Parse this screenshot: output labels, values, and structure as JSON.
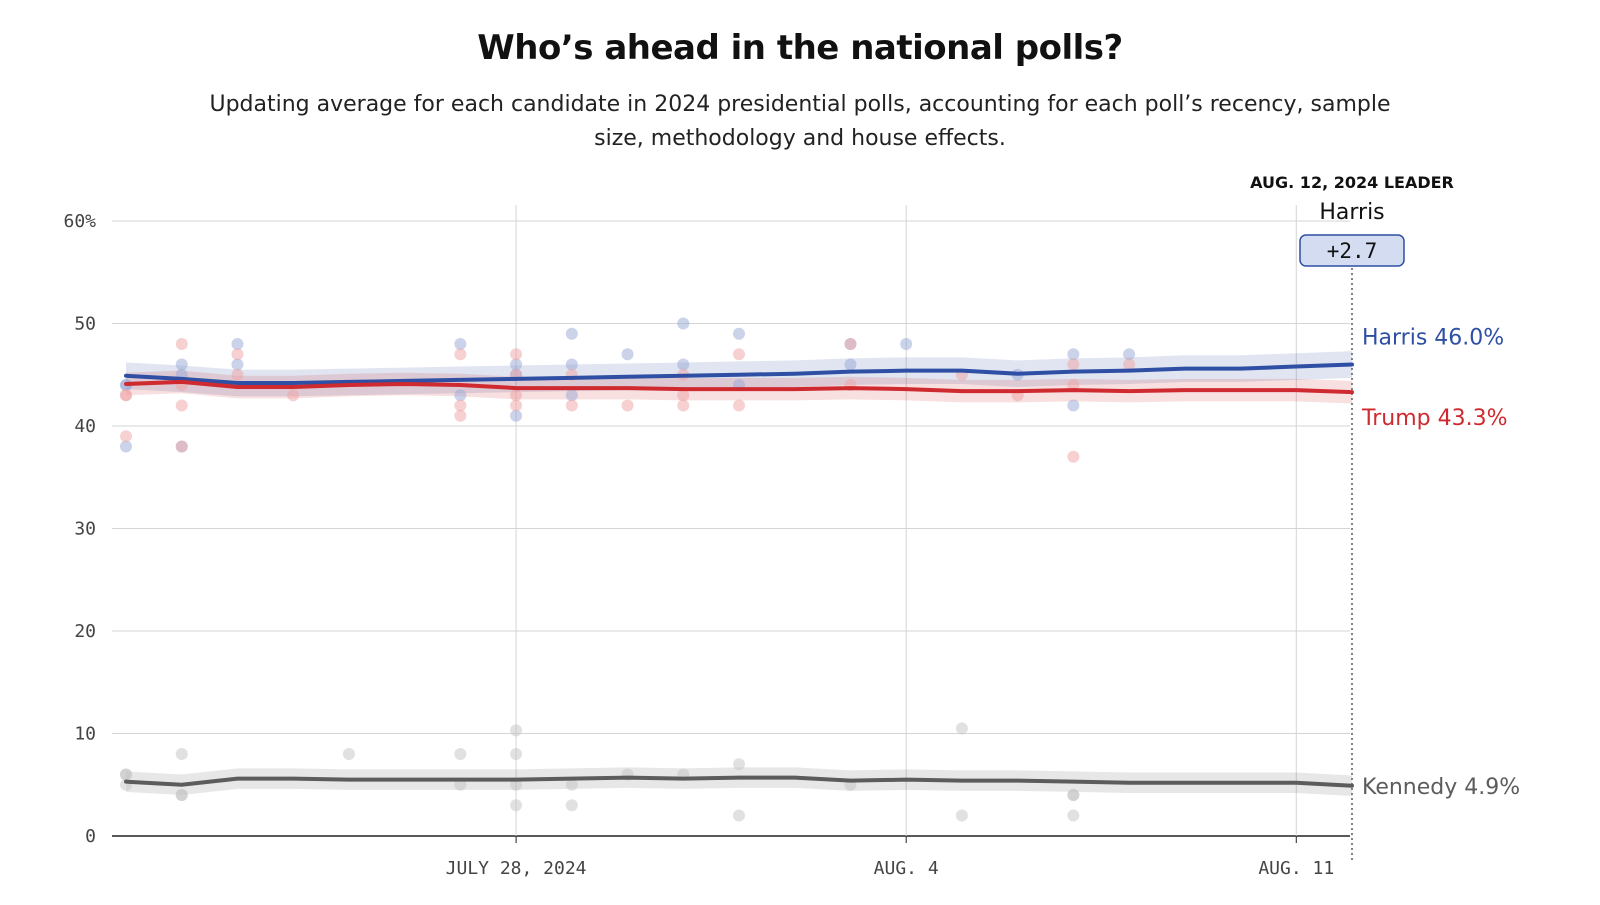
{
  "title": "Who’s ahead in the national polls?",
  "subtitle": "Updating average for each candidate in 2024 presidential polls, accounting for each poll’s recency, sample size, methodology and house effects.",
  "chart_data": {
    "type": "line",
    "y_unit": "%",
    "ylim": [
      0,
      60
    ],
    "y_ticks": [
      0,
      10,
      20,
      30,
      40,
      50,
      60
    ],
    "y_tick_labels": [
      "0",
      "10",
      "20",
      "30",
      "40",
      "50",
      "60%"
    ],
    "x_range": [
      "2024-07-21",
      "2024-08-12"
    ],
    "x_ticks": [
      {
        "date": "2024-07-28",
        "label": "JULY 28, 2024"
      },
      {
        "date": "2024-08-04",
        "label": "AUG. 4"
      },
      {
        "date": "2024-08-11",
        "label": "AUG. 11"
      }
    ],
    "grid": true,
    "leader": {
      "date_label": "AUG. 12, 2024 LEADER",
      "name": "Harris",
      "margin": "+2.7"
    },
    "series": [
      {
        "name": "Harris",
        "end_label": "Harris 46.0%",
        "color": "#2e4fa3",
        "dot_color": "#97a7d6",
        "x": [
          "2024-07-21",
          "2024-07-22",
          "2024-07-23",
          "2024-07-24",
          "2024-07-25",
          "2024-07-26",
          "2024-07-27",
          "2024-07-28",
          "2024-07-29",
          "2024-07-30",
          "2024-07-31",
          "2024-08-01",
          "2024-08-02",
          "2024-08-03",
          "2024-08-04",
          "2024-08-05",
          "2024-08-06",
          "2024-08-07",
          "2024-08-08",
          "2024-08-09",
          "2024-08-10",
          "2024-08-11",
          "2024-08-12"
        ],
        "values": [
          44.9,
          44.6,
          44.2,
          44.2,
          44.3,
          44.4,
          44.5,
          44.6,
          44.7,
          44.8,
          44.9,
          45.0,
          45.1,
          45.3,
          45.4,
          45.4,
          45.1,
          45.3,
          45.4,
          45.6,
          45.6,
          45.8,
          46.0
        ],
        "band": 1.3,
        "polls": [
          {
            "date": "2024-07-21",
            "value": 44
          },
          {
            "date": "2024-07-21",
            "value": 38
          },
          {
            "date": "2024-07-21",
            "value": 44
          },
          {
            "date": "2024-07-22",
            "value": 46
          },
          {
            "date": "2024-07-22",
            "value": 45
          },
          {
            "date": "2024-07-22",
            "value": 38
          },
          {
            "date": "2024-07-23",
            "value": 48
          },
          {
            "date": "2024-07-23",
            "value": 46
          },
          {
            "date": "2024-07-27",
            "value": 48
          },
          {
            "date": "2024-07-27",
            "value": 43
          },
          {
            "date": "2024-07-28",
            "value": 46
          },
          {
            "date": "2024-07-28",
            "value": 45
          },
          {
            "date": "2024-07-28",
            "value": 41
          },
          {
            "date": "2024-07-29",
            "value": 49
          },
          {
            "date": "2024-07-29",
            "value": 46
          },
          {
            "date": "2024-07-29",
            "value": 43
          },
          {
            "date": "2024-07-30",
            "value": 47
          },
          {
            "date": "2024-07-31",
            "value": 50
          },
          {
            "date": "2024-07-31",
            "value": 46
          },
          {
            "date": "2024-08-01",
            "value": 49
          },
          {
            "date": "2024-08-01",
            "value": 44
          },
          {
            "date": "2024-08-03",
            "value": 48
          },
          {
            "date": "2024-08-03",
            "value": 46
          },
          {
            "date": "2024-08-04",
            "value": 48
          },
          {
            "date": "2024-08-06",
            "value": 45
          },
          {
            "date": "2024-08-07",
            "value": 47
          },
          {
            "date": "2024-08-07",
            "value": 42
          },
          {
            "date": "2024-08-08",
            "value": 47
          }
        ]
      },
      {
        "name": "Trump",
        "end_label": "Trump 43.3%",
        "color": "#cf2a2f",
        "dot_color": "#efa3a3",
        "x": [
          "2024-07-21",
          "2024-07-22",
          "2024-07-23",
          "2024-07-24",
          "2024-07-25",
          "2024-07-26",
          "2024-07-27",
          "2024-07-28",
          "2024-07-29",
          "2024-07-30",
          "2024-07-31",
          "2024-08-01",
          "2024-08-02",
          "2024-08-03",
          "2024-08-04",
          "2024-08-05",
          "2024-08-06",
          "2024-08-07",
          "2024-08-08",
          "2024-08-09",
          "2024-08-10",
          "2024-08-11",
          "2024-08-12"
        ],
        "values": [
          44.1,
          44.3,
          43.8,
          43.8,
          44.0,
          44.1,
          44.0,
          43.7,
          43.7,
          43.7,
          43.6,
          43.6,
          43.6,
          43.7,
          43.6,
          43.4,
          43.4,
          43.5,
          43.4,
          43.5,
          43.5,
          43.5,
          43.3
        ],
        "band": 1.1,
        "polls": [
          {
            "date": "2024-07-21",
            "value": 43
          },
          {
            "date": "2024-07-21",
            "value": 39
          },
          {
            "date": "2024-07-21",
            "value": 43
          },
          {
            "date": "2024-07-22",
            "value": 48
          },
          {
            "date": "2024-07-22",
            "value": 42
          },
          {
            "date": "2024-07-22",
            "value": 44
          },
          {
            "date": "2024-07-22",
            "value": 38
          },
          {
            "date": "2024-07-23",
            "value": 47
          },
          {
            "date": "2024-07-23",
            "value": 45
          },
          {
            "date": "2024-07-24",
            "value": 43
          },
          {
            "date": "2024-07-27",
            "value": 47
          },
          {
            "date": "2024-07-27",
            "value": 42
          },
          {
            "date": "2024-07-27",
            "value": 41
          },
          {
            "date": "2024-07-28",
            "value": 47
          },
          {
            "date": "2024-07-28",
            "value": 45
          },
          {
            "date": "2024-07-28",
            "value": 43
          },
          {
            "date": "2024-07-28",
            "value": 42
          },
          {
            "date": "2024-07-29",
            "value": 45
          },
          {
            "date": "2024-07-29",
            "value": 42
          },
          {
            "date": "2024-07-30",
            "value": 42
          },
          {
            "date": "2024-07-31",
            "value": 45
          },
          {
            "date": "2024-07-31",
            "value": 43
          },
          {
            "date": "2024-07-31",
            "value": 42
          },
          {
            "date": "2024-08-01",
            "value": 47
          },
          {
            "date": "2024-08-01",
            "value": 42
          },
          {
            "date": "2024-08-03",
            "value": 48
          },
          {
            "date": "2024-08-03",
            "value": 44
          },
          {
            "date": "2024-08-05",
            "value": 45
          },
          {
            "date": "2024-08-06",
            "value": 43
          },
          {
            "date": "2024-08-07",
            "value": 46
          },
          {
            "date": "2024-08-07",
            "value": 44
          },
          {
            "date": "2024-08-07",
            "value": 37
          },
          {
            "date": "2024-08-08",
            "value": 46
          }
        ]
      },
      {
        "name": "Kennedy",
        "end_label": "Kennedy 4.9%",
        "color": "#5c5c5c",
        "dot_color": "#c4c4c4",
        "x": [
          "2024-07-21",
          "2024-07-22",
          "2024-07-23",
          "2024-07-24",
          "2024-07-25",
          "2024-07-26",
          "2024-07-27",
          "2024-07-28",
          "2024-07-29",
          "2024-07-30",
          "2024-07-31",
          "2024-08-01",
          "2024-08-02",
          "2024-08-03",
          "2024-08-04",
          "2024-08-05",
          "2024-08-06",
          "2024-08-07",
          "2024-08-08",
          "2024-08-09",
          "2024-08-10",
          "2024-08-11",
          "2024-08-12"
        ],
        "values": [
          5.3,
          5.0,
          5.6,
          5.6,
          5.5,
          5.5,
          5.5,
          5.5,
          5.6,
          5.7,
          5.6,
          5.7,
          5.7,
          5.4,
          5.5,
          5.4,
          5.4,
          5.3,
          5.2,
          5.2,
          5.2,
          5.2,
          4.9
        ],
        "band": 1.0,
        "polls": [
          {
            "date": "2024-07-21",
            "value": 6
          },
          {
            "date": "2024-07-21",
            "value": 5
          },
          {
            "date": "2024-07-21",
            "value": 6
          },
          {
            "date": "2024-07-22",
            "value": 8
          },
          {
            "date": "2024-07-22",
            "value": 4
          },
          {
            "date": "2024-07-22",
            "value": 4
          },
          {
            "date": "2024-07-25",
            "value": 8
          },
          {
            "date": "2024-07-27",
            "value": 8
          },
          {
            "date": "2024-07-27",
            "value": 5
          },
          {
            "date": "2024-07-28",
            "value": 10.3
          },
          {
            "date": "2024-07-28",
            "value": 8
          },
          {
            "date": "2024-07-28",
            "value": 5
          },
          {
            "date": "2024-07-28",
            "value": 3
          },
          {
            "date": "2024-07-29",
            "value": 5
          },
          {
            "date": "2024-07-29",
            "value": 3
          },
          {
            "date": "2024-07-30",
            "value": 6
          },
          {
            "date": "2024-07-31",
            "value": 6
          },
          {
            "date": "2024-08-01",
            "value": 7
          },
          {
            "date": "2024-08-01",
            "value": 2
          },
          {
            "date": "2024-08-03",
            "value": 5
          },
          {
            "date": "2024-08-05",
            "value": 10.5
          },
          {
            "date": "2024-08-05",
            "value": 2
          },
          {
            "date": "2024-08-07",
            "value": 4
          },
          {
            "date": "2024-08-07",
            "value": 4
          },
          {
            "date": "2024-08-07",
            "value": 2
          }
        ]
      }
    ]
  }
}
